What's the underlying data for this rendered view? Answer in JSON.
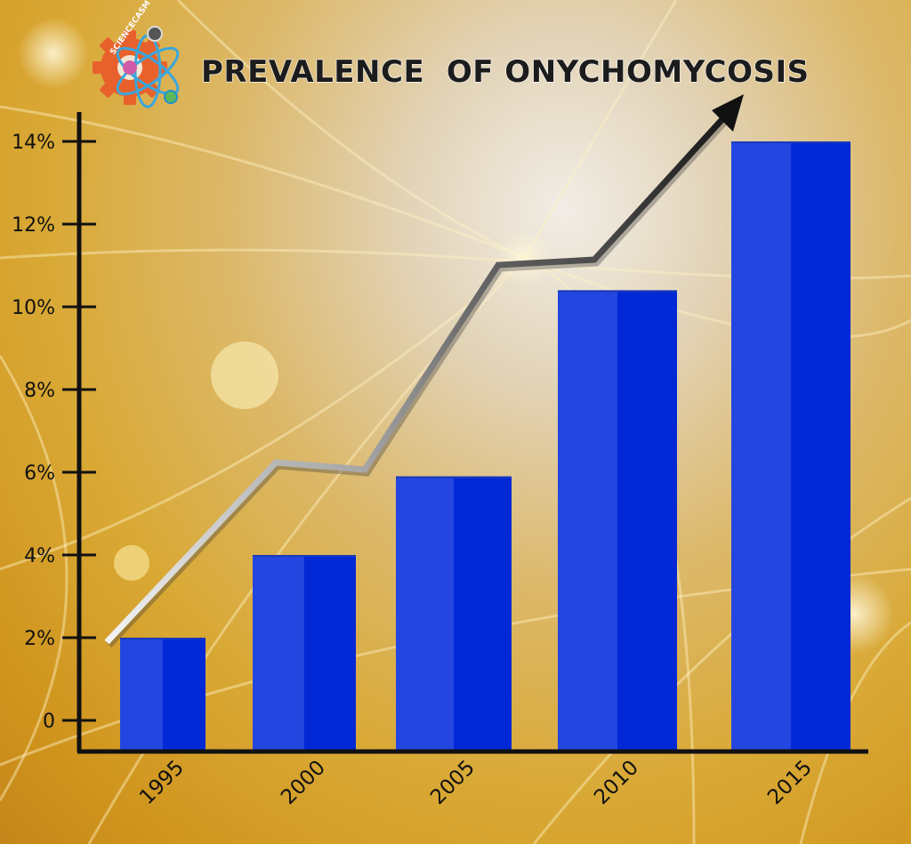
{
  "chart_data": {
    "type": "bar",
    "title": "PREVALENCE  OF ONYCHOMYCOSIS",
    "xlabel": "",
    "ylabel": "",
    "categories": [
      "1995",
      "2000",
      "2005",
      "2010",
      "2015"
    ],
    "values": [
      2.0,
      4.0,
      5.9,
      10.4,
      14.0
    ],
    "y_ticks": [
      {
        "value": 0,
        "label": "0"
      },
      {
        "value": 2,
        "label": "2%"
      },
      {
        "value": 4,
        "label": "4%"
      },
      {
        "value": 6,
        "label": "6%"
      },
      {
        "value": 8,
        "label": "8%"
      },
      {
        "value": 10,
        "label": "10%"
      },
      {
        "value": 12,
        "label": "12%"
      },
      {
        "value": 14,
        "label": "14%"
      }
    ],
    "ylim": [
      0,
      14.5
    ],
    "grid": false,
    "legend": "none",
    "colors": {
      "bar_light": "#2346e0",
      "bar_dark": "#0328d6",
      "arrow_dark": "#1a1a1a",
      "arrow_light": "#e8e8e8"
    }
  },
  "logo": {
    "name": "sciencecasm-gear-logo",
    "text": "SCIENCECASM",
    "color": "#e8612c"
  }
}
